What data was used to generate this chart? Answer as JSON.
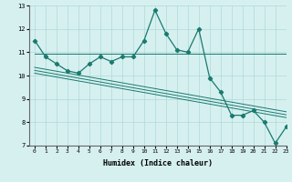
{
  "main_x": [
    0,
    1,
    2,
    3,
    4,
    5,
    6,
    7,
    8,
    9,
    10,
    11,
    12,
    13,
    14,
    15,
    16,
    17,
    18,
    19,
    20,
    21,
    22,
    23
  ],
  "main_y": [
    11.5,
    10.8,
    10.5,
    10.2,
    10.1,
    10.5,
    10.8,
    10.6,
    10.8,
    10.8,
    11.5,
    12.8,
    11.8,
    11.1,
    11.0,
    12.0,
    9.9,
    9.3,
    8.3,
    8.3,
    8.5,
    8.0,
    7.1,
    7.8
  ],
  "line_color": "#1a7a6e",
  "bg_color": "#d6f0f0",
  "grid_color": "#b0d8d8",
  "xlabel": "Humidex (Indice chaleur)",
  "ylim": [
    7,
    13
  ],
  "xlim": [
    -0.5,
    23
  ],
  "yticks": [
    7,
    8,
    9,
    10,
    11,
    12,
    13
  ],
  "xticks": [
    0,
    1,
    2,
    3,
    4,
    5,
    6,
    7,
    8,
    9,
    10,
    11,
    12,
    13,
    14,
    15,
    16,
    17,
    18,
    19,
    20,
    21,
    22,
    23
  ],
  "trend_lines": [
    {
      "x0": 0,
      "y0": 10.35,
      "x1": 23,
      "y1": 8.45
    },
    {
      "x0": 0,
      "y0": 10.22,
      "x1": 23,
      "y1": 8.32
    },
    {
      "x0": 0,
      "y0": 10.1,
      "x1": 23,
      "y1": 8.2
    }
  ],
  "flat_line": {
    "x0": 0,
    "y0": 10.95,
    "x1": 10,
    "y1": 10.95,
    "x2": 23,
    "y2": 10.95
  }
}
